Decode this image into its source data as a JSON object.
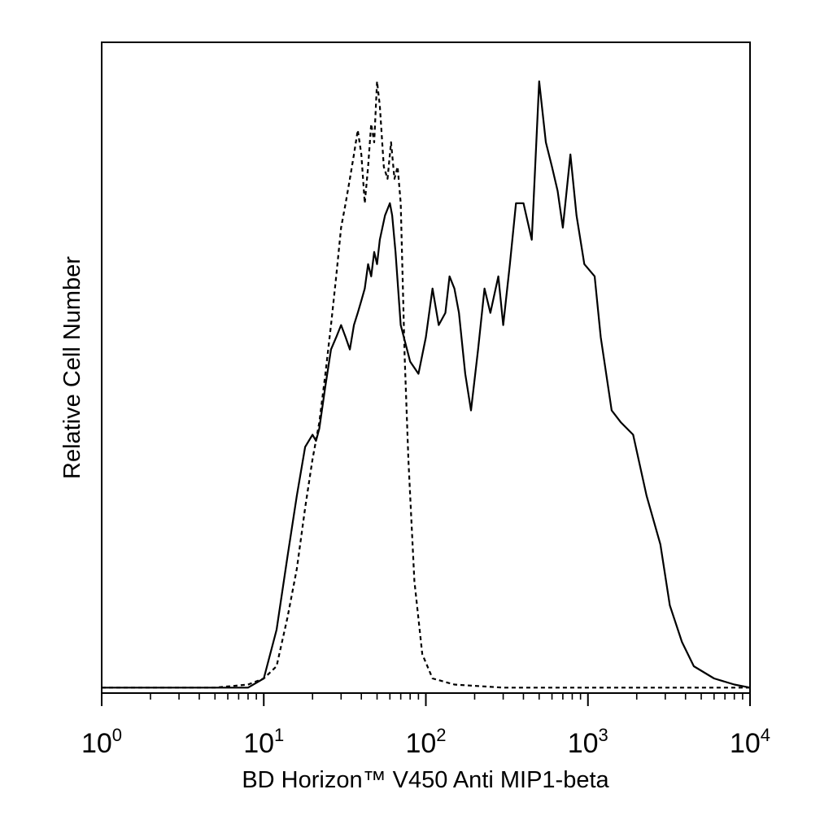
{
  "chart_data": {
    "type": "line",
    "title": "",
    "xlabel": "BD Horizon™ V450 Anti MIP1-beta",
    "ylabel": "Relative Cell Number",
    "x_scale": "log",
    "xlim": [
      1,
      10000
    ],
    "ylim": [
      0,
      100
    ],
    "x_ticks": [
      {
        "base": "10",
        "exp": "0",
        "value": 1
      },
      {
        "base": "10",
        "exp": "1",
        "value": 10
      },
      {
        "base": "10",
        "exp": "2",
        "value": 100
      },
      {
        "base": "10",
        "exp": "3",
        "value": 1000
      },
      {
        "base": "10",
        "exp": "4",
        "value": 10000
      }
    ],
    "grid": false,
    "legend": "none",
    "series": [
      {
        "style": "dashed",
        "color": "#000000",
        "points": [
          [
            1,
            0.5
          ],
          [
            5,
            0.5
          ],
          [
            8,
            1
          ],
          [
            10,
            2
          ],
          [
            12,
            4
          ],
          [
            14,
            12
          ],
          [
            16,
            20
          ],
          [
            18,
            30
          ],
          [
            20,
            38
          ],
          [
            22,
            44
          ],
          [
            24,
            52
          ],
          [
            26,
            60
          ],
          [
            28,
            68
          ],
          [
            30,
            76
          ],
          [
            32,
            80
          ],
          [
            34,
            84
          ],
          [
            36,
            88
          ],
          [
            38,
            92
          ],
          [
            40,
            88
          ],
          [
            42,
            80
          ],
          [
            44,
            86
          ],
          [
            46,
            93
          ],
          [
            48,
            90
          ],
          [
            50,
            100
          ],
          [
            52,
            96
          ],
          [
            55,
            86
          ],
          [
            58,
            84
          ],
          [
            61,
            90
          ],
          [
            64,
            84
          ],
          [
            67,
            86
          ],
          [
            70,
            80
          ],
          [
            74,
            55
          ],
          [
            78,
            38
          ],
          [
            85,
            18
          ],
          [
            95,
            6
          ],
          [
            110,
            2
          ],
          [
            150,
            1
          ],
          [
            300,
            0.5
          ],
          [
            1000,
            0.5
          ],
          [
            10000,
            0.5
          ]
        ]
      },
      {
        "style": "solid",
        "color": "#000000",
        "points": [
          [
            1,
            0.5
          ],
          [
            8,
            0.5
          ],
          [
            10,
            2
          ],
          [
            12,
            10
          ],
          [
            14,
            22
          ],
          [
            16,
            32
          ],
          [
            18,
            40
          ],
          [
            20,
            42
          ],
          [
            21,
            41
          ],
          [
            22,
            43
          ],
          [
            24,
            50
          ],
          [
            26,
            56
          ],
          [
            28,
            58
          ],
          [
            30,
            60
          ],
          [
            32,
            58
          ],
          [
            34,
            56
          ],
          [
            36,
            60
          ],
          [
            38,
            62
          ],
          [
            40,
            64
          ],
          [
            42,
            66
          ],
          [
            44,
            70
          ],
          [
            46,
            68
          ],
          [
            48,
            72
          ],
          [
            50,
            70
          ],
          [
            52,
            74
          ],
          [
            56,
            78
          ],
          [
            60,
            80
          ],
          [
            62,
            78
          ],
          [
            65,
            72
          ],
          [
            70,
            60
          ],
          [
            80,
            54
          ],
          [
            90,
            52
          ],
          [
            100,
            58
          ],
          [
            110,
            66
          ],
          [
            120,
            60
          ],
          [
            132,
            62
          ],
          [
            140,
            68
          ],
          [
            150,
            66
          ],
          [
            160,
            62
          ],
          [
            175,
            52
          ],
          [
            190,
            46
          ],
          [
            210,
            56
          ],
          [
            230,
            66
          ],
          [
            250,
            62
          ],
          [
            280,
            68
          ],
          [
            300,
            60
          ],
          [
            330,
            70
          ],
          [
            360,
            80
          ],
          [
            400,
            80
          ],
          [
            450,
            74
          ],
          [
            500,
            100
          ],
          [
            550,
            90
          ],
          [
            600,
            86
          ],
          [
            650,
            82
          ],
          [
            700,
            76
          ],
          [
            780,
            88
          ],
          [
            850,
            78
          ],
          [
            950,
            70
          ],
          [
            1100,
            68
          ],
          [
            1200,
            58
          ],
          [
            1400,
            46
          ],
          [
            1600,
            44
          ],
          [
            1900,
            42
          ],
          [
            2300,
            32
          ],
          [
            2800,
            24
          ],
          [
            3200,
            14
          ],
          [
            3800,
            8
          ],
          [
            4500,
            4
          ],
          [
            6000,
            2
          ],
          [
            8000,
            1
          ],
          [
            10000,
            0.5
          ]
        ]
      }
    ]
  }
}
